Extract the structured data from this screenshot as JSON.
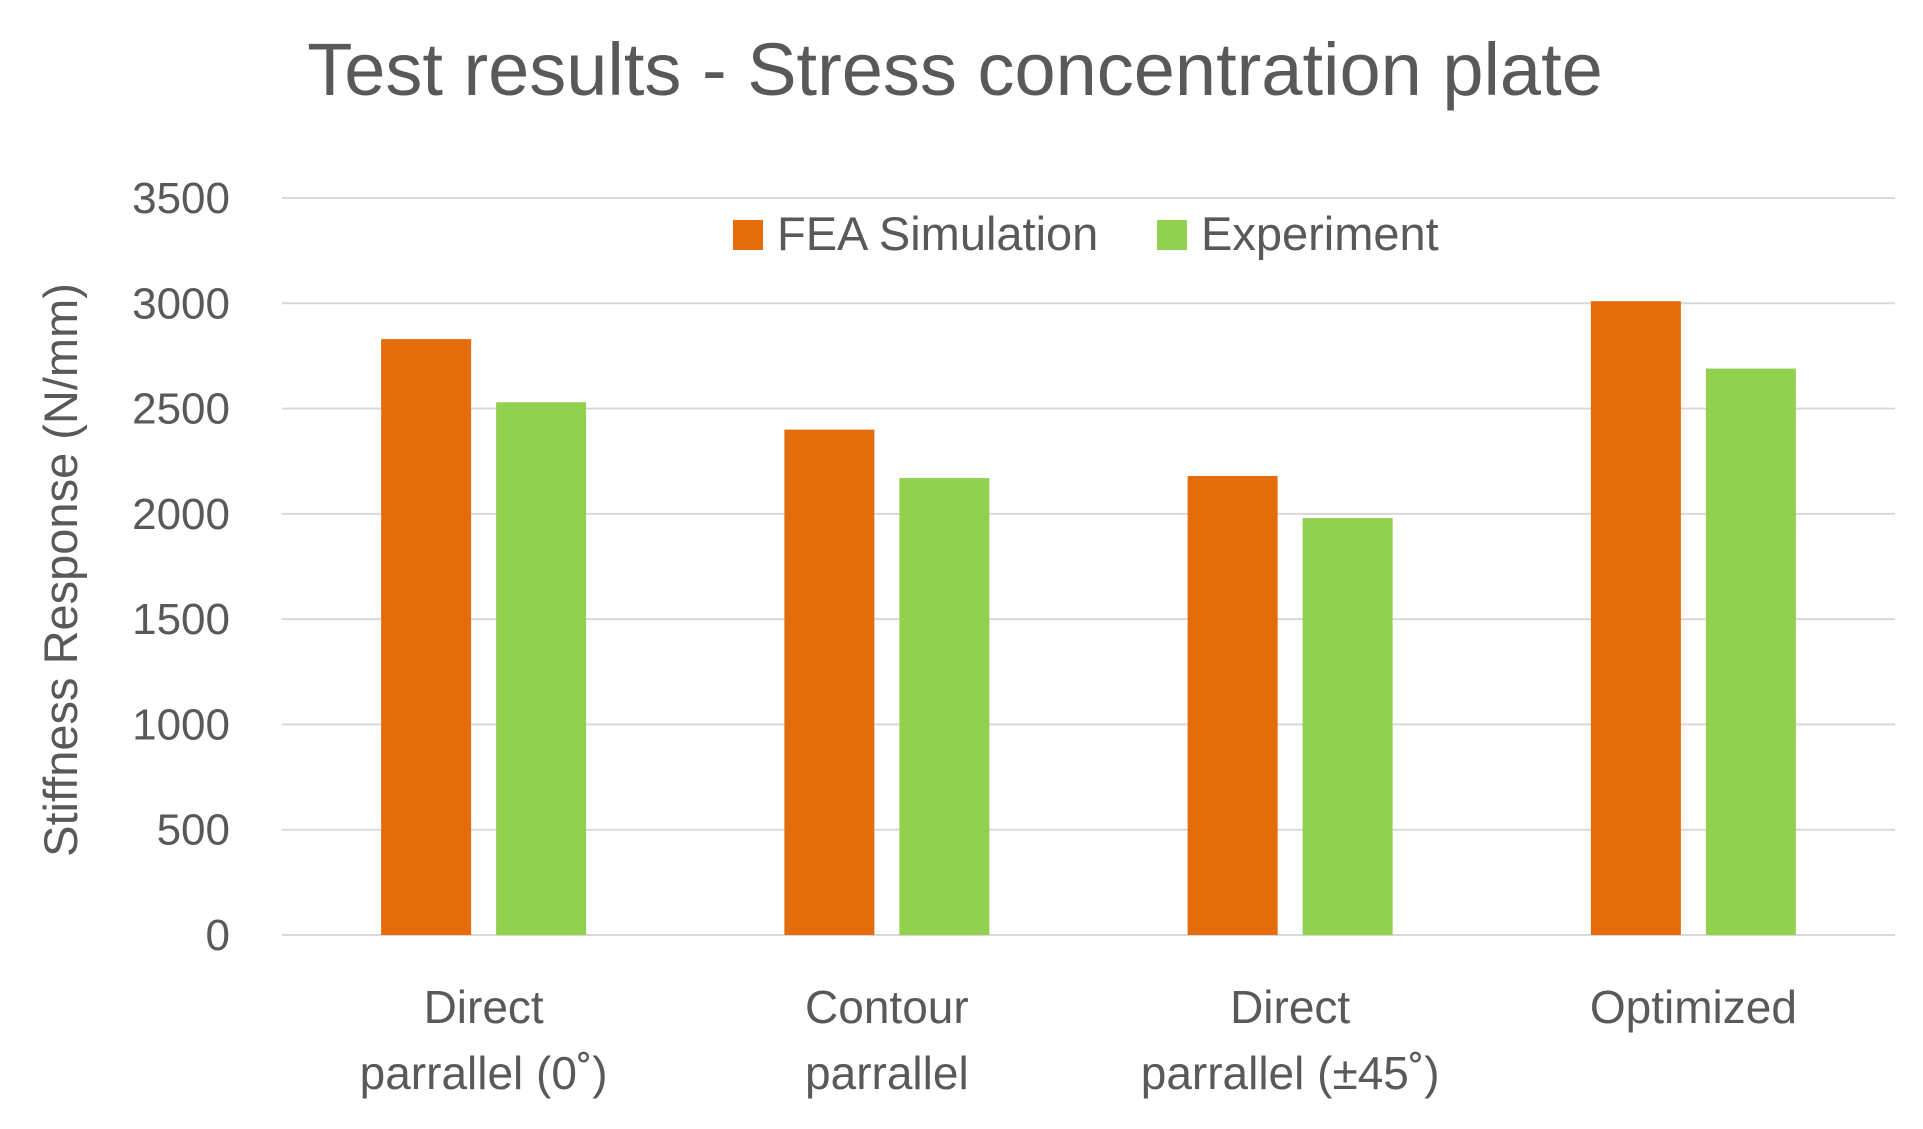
{
  "chart_data": {
    "type": "bar",
    "title": "Test results - Stress concentration plate",
    "xlabel": "",
    "ylabel": "Stiffness Response (N/mm)",
    "categories": [
      [
        "Direct",
        "parrallel (0˚)"
      ],
      [
        "Contour",
        "parrallel"
      ],
      [
        "Direct",
        "parrallel (±45˚)"
      ],
      [
        "Optimized"
      ]
    ],
    "series": [
      {
        "name": "FEA Simulation",
        "color": "#E46C0A",
        "values": [
          2830,
          2400,
          2180,
          3010
        ]
      },
      {
        "name": "Experiment",
        "color": "#92D050",
        "values": [
          2530,
          2170,
          1980,
          2690
        ]
      }
    ],
    "ylim": [
      0,
      3500
    ],
    "yticks": [
      "0",
      "500",
      "1000",
      "1500",
      "2000",
      "2500",
      "3000",
      "3500"
    ],
    "legend_position": "top-center",
    "grid": true
  }
}
